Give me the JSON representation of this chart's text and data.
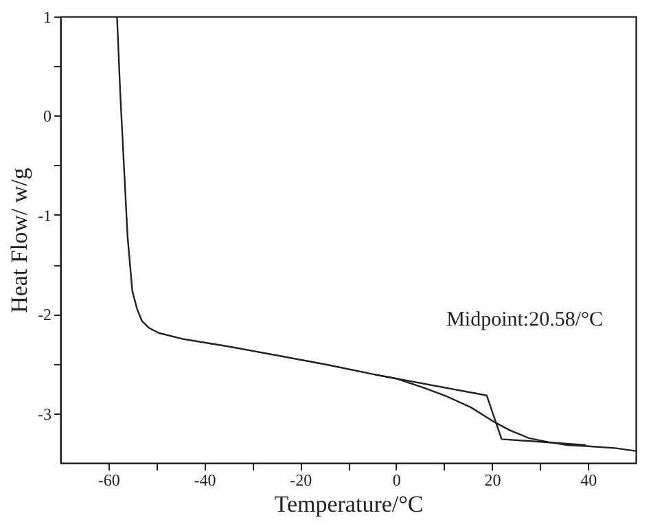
{
  "chart_data": {
    "type": "line",
    "xlabel": "Temperature/°C",
    "ylabel": "Heat Flow/  w/g",
    "xlim": [
      -70,
      50
    ],
    "ylim": [
      -3.5,
      1
    ],
    "xticks": [
      -60,
      {
        "value": -50,
        "label": null
      },
      -40,
      {
        "value": -30,
        "label": null
      },
      -20,
      {
        "value": -10,
        "label": null
      },
      0,
      {
        "value": 10,
        "label": null
      },
      20,
      {
        "value": 30,
        "label": null
      },
      40
    ],
    "yticks": [
      1,
      {
        "value": 0.5,
        "label": null
      },
      0,
      {
        "value": -0.5,
        "label": null
      },
      -1,
      {
        "value": -1.5,
        "label": null
      },
      -2,
      {
        "value": -2.5,
        "label": null
      },
      -3
    ],
    "grid": false,
    "line_style": "solid",
    "marker": "none",
    "annotations": [
      "Midpoint:20.58/°C"
    ],
    "series": [
      {
        "color": "#222222",
        "x": [
          -58.2,
          -57.5,
          -56,
          -55,
          -54,
          -53,
          -51.5,
          -49.5,
          -44.5,
          -34.5,
          -24.4,
          -14.4,
          -4.4,
          0,
          5.6,
          10.6,
          15.6,
          20.2,
          23.7,
          27.7,
          31.7,
          35.7,
          39.6,
          45.6,
          50
        ],
        "values": [
          1,
          0.2,
          -1.22,
          -1.77,
          -1.95,
          -2.07,
          -2.14,
          -2.19,
          -2.25,
          -2.33,
          -2.42,
          -2.51,
          -2.61,
          -2.65,
          -2.74,
          -2.83,
          -2.94,
          -3.08,
          -3.17,
          -3.25,
          -3.29,
          -3.32,
          -3.33,
          -3.35,
          -3.38
        ]
      },
      {
        "color": "#222222",
        "x": [
          -4.4,
          18.9,
          22,
          39.6
        ],
        "values": [
          -2.61,
          -2.82,
          -3.26,
          -3.32
        ]
      }
    ]
  }
}
